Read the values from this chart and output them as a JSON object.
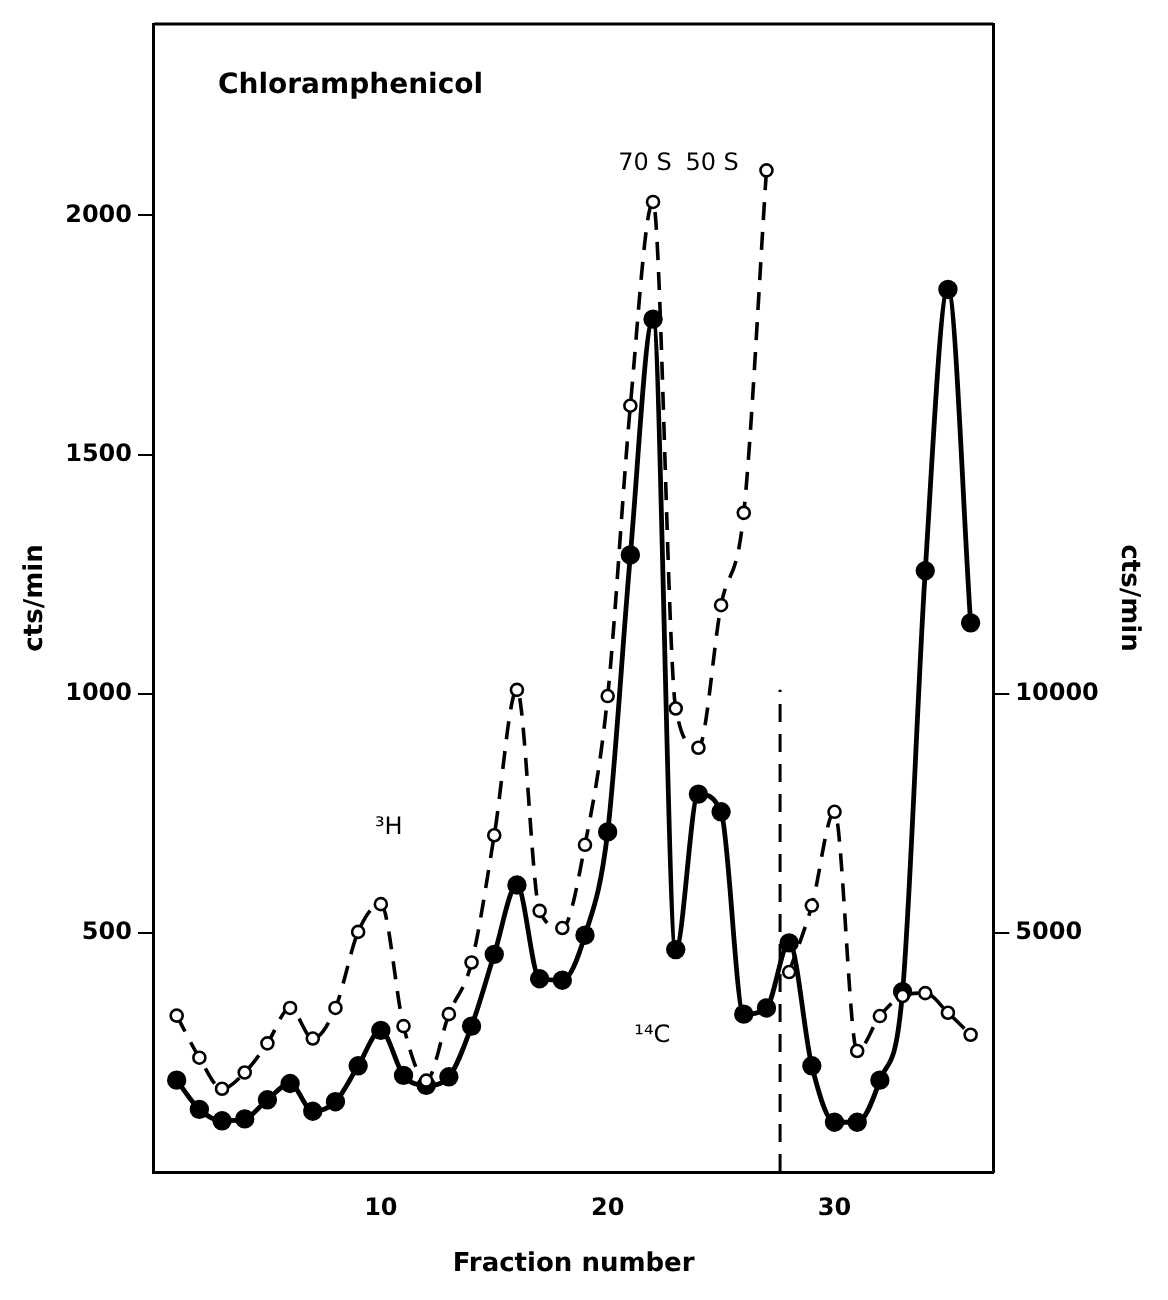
{
  "chart_data": {
    "type": "line",
    "title": "Chloramphenicol",
    "xlabel": "Fraction number",
    "ylabel": "cts/min",
    "y2label": "cts/min",
    "xlim": [
      0,
      37
    ],
    "xticks": [
      10,
      20,
      30
    ],
    "ylim": [
      0,
      2400
    ],
    "yticks": [
      500,
      1000,
      1500,
      2000
    ],
    "y2lim": [
      0,
      24000
    ],
    "y2ticks": [
      5000,
      10000
    ],
    "grid": false,
    "legend": false,
    "marker": "circle",
    "series": [
      {
        "name": "³H",
        "color": "#000000",
        "line_style": "dashed",
        "axis": "y",
        "x": [
          1,
          2,
          3,
          4,
          5,
          6,
          7,
          8,
          9,
          10,
          11,
          12,
          13,
          14,
          15,
          16,
          17,
          18,
          19,
          20,
          21,
          22,
          23,
          24,
          25,
          26,
          27,
          27.5,
          28,
          29,
          30,
          31,
          32,
          33,
          34,
          35,
          36
        ],
        "values": [
          327,
          239,
          174,
          208,
          269,
          343,
          279,
          343,
          502,
          560,
          305,
          191,
          330,
          438,
          704,
          1008,
          546,
          510,
          684,
          995,
          1602,
          2028,
          969,
          887,
          1185,
          1378,
          2094,
          null,
          418,
          557,
          753,
          253,
          326,
          368,
          374,
          333,
          287
        ]
      },
      {
        "name": "¹⁴C",
        "color": "#000000",
        "line_style": "solid",
        "axis": "y2",
        "x": [
          1,
          2,
          3,
          4,
          5,
          6,
          7,
          8,
          9,
          10,
          11,
          12,
          13,
          14,
          15,
          16,
          17,
          18,
          19,
          20,
          21,
          22,
          23,
          24,
          25,
          26,
          27,
          28,
          29,
          30,
          31,
          32,
          33,
          34,
          35,
          36
        ],
        "values": [
          1920,
          1310,
          1070,
          1110,
          1510,
          1850,
          1270,
          1470,
          2220,
          2960,
          2020,
          1810,
          1990,
          3050,
          4550,
          6000,
          4040,
          4010,
          4950,
          7110,
          12900,
          17830,
          4650,
          7900,
          7530,
          3300,
          3430,
          4790,
          2220,
          1040,
          1040,
          1920,
          3770,
          12570,
          18450,
          11480
        ]
      }
    ],
    "ref_lines": [
      {
        "axis": "x",
        "value": 27.6,
        "line_style": "dashed",
        "color": "#000000"
      }
    ],
    "annotations": [
      "70 S",
      "50 S"
    ]
  }
}
